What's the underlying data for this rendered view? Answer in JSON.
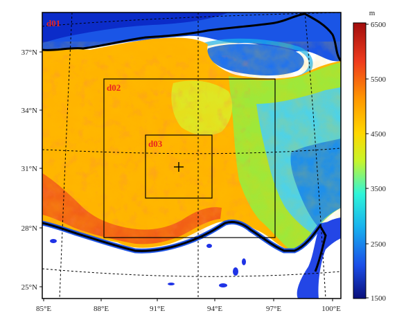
{
  "map": {
    "longitude_ticks": [
      "85°E",
      "88°E",
      "91°E",
      "94°E",
      "97°E",
      "100°E"
    ],
    "latitude_ticks": [
      "37°N",
      "34°N",
      "31°N",
      "28°N",
      "25°N"
    ],
    "domains": [
      {
        "label": "d01"
      },
      {
        "label": "d02"
      },
      {
        "label": "d03"
      }
    ],
    "label_color": "#e8231f",
    "center_marker": "plus-icon"
  },
  "colorbar": {
    "unit": "m",
    "tick_labels": [
      "6500",
      "5500",
      "4500",
      "3500",
      "2500",
      "1500"
    ],
    "colors": [
      "#0a0f7a",
      "#1b4ee8",
      "#18b2ee",
      "#2ff5d9",
      "#c8f52a",
      "#ffd700",
      "#ff9a00",
      "#ef3b1d",
      "#a10d0d"
    ]
  }
}
